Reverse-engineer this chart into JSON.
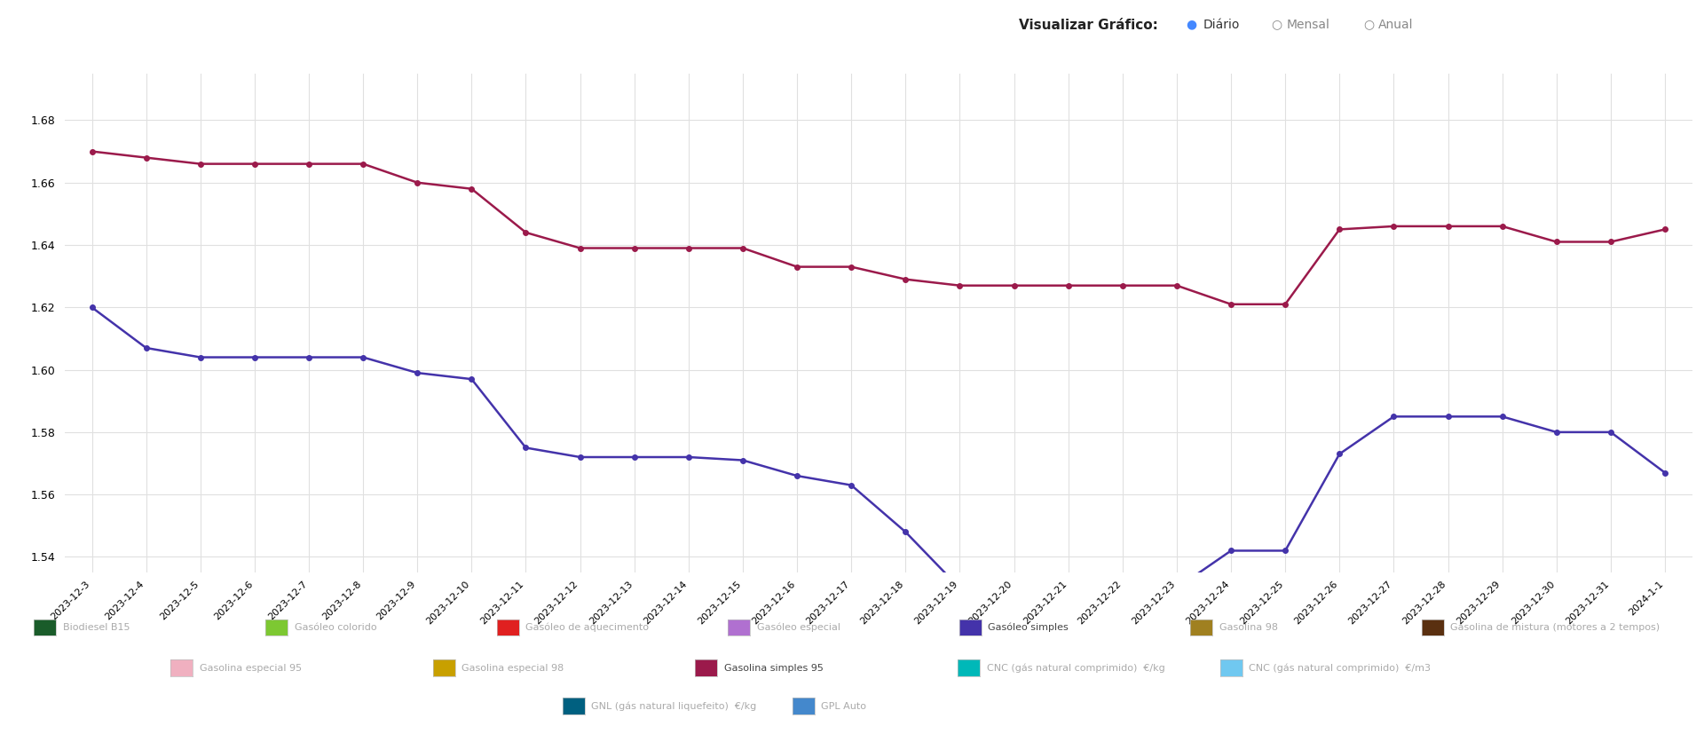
{
  "background_color": "#ffffff",
  "grid_color": "#e0e0e0",
  "ylim": [
    1.535,
    1.695
  ],
  "yticks": [
    1.54,
    1.56,
    1.58,
    1.6,
    1.62,
    1.64,
    1.66,
    1.68
  ],
  "dates": [
    "2023-12-3",
    "2023-12-4",
    "2023-12-5",
    "2023-12-6",
    "2023-12-7",
    "2023-12-8",
    "2023-12-9",
    "2023-12-10",
    "2023-12-11",
    "2023-12-12",
    "2023-12-13",
    "2023-12-14",
    "2023-12-15",
    "2023-12-16",
    "2023-12-17",
    "2023-12-18",
    "2023-12-19",
    "2023-12-20",
    "2023-12-21",
    "2023-12-22",
    "2023-12-23",
    "2023-12-24",
    "2023-12-25",
    "2023-12-26",
    "2023-12-27",
    "2023-12-28",
    "2023-12-29",
    "2023-12-30",
    "2023-12-31",
    "2024-1-1"
  ],
  "gasolina95": [
    1.67,
    1.668,
    1.666,
    1.666,
    1.666,
    1.666,
    1.66,
    1.658,
    1.644,
    1.639,
    1.639,
    1.639,
    1.639,
    1.633,
    1.633,
    1.629,
    1.627,
    1.627,
    1.627,
    1.627,
    1.627,
    1.621,
    1.621,
    1.645,
    1.646,
    1.646,
    1.646,
    1.641,
    1.641,
    1.645
  ],
  "gasoleo_simples": [
    1.62,
    1.607,
    1.604,
    1.604,
    1.604,
    1.604,
    1.599,
    1.597,
    1.575,
    1.572,
    1.572,
    1.572,
    1.571,
    1.566,
    1.563,
    1.548,
    1.53,
    1.53,
    1.53,
    1.53,
    1.53,
    1.542,
    1.542,
    1.573,
    1.585,
    1.585,
    1.585,
    1.58,
    1.58,
    1.567
  ],
  "gasolina95_color": "#9b1a4b",
  "gasoleo_color": "#4433aa",
  "marker_size": 4,
  "line_width": 1.8,
  "legend_rows": [
    [
      {
        "label": "Biodiesel B15",
        "color": "#1a5c2a",
        "active": false
      },
      {
        "label": "Gasóleo colorido",
        "color": "#7dc832",
        "active": false
      },
      {
        "label": "Gasóleo de aquecimento",
        "color": "#e02020",
        "active": false
      },
      {
        "label": "Gasóleo especial",
        "color": "#b070d0",
        "active": false
      },
      {
        "label": "Gasóleo simples",
        "color": "#4433aa",
        "active": true
      },
      {
        "label": "Gasolina 98",
        "color": "#a08020",
        "active": false
      },
      {
        "label": "Gasolina de mistura (motores a 2 tempos)",
        "color": "#5a3010",
        "active": false
      }
    ],
    [
      {
        "label": "Gasolina especial 95",
        "color": "#f0b0c0",
        "active": false
      },
      {
        "label": "Gasolina especial 98",
        "color": "#c8a000",
        "active": false
      },
      {
        "label": "Gasolina simples 95",
        "color": "#9b1a4b",
        "active": true
      },
      {
        "label": "CNC (gás natural comprimido)  €/kg",
        "color": "#00b8b8",
        "active": false
      },
      {
        "label": "CNC (gás natural comprimido)  €/m3",
        "color": "#70c8f0",
        "active": false
      }
    ],
    [
      {
        "label": "GNL (gás natural liquefeito)  €/kg",
        "color": "#006080",
        "active": false
      },
      {
        "label": "GPL Auto",
        "color": "#4488cc",
        "active": false
      }
    ]
  ],
  "header_label": "Visualizar Gráfico:",
  "header_diario": "Diário",
  "header_mensal": "Mensal",
  "header_anual": "Anual"
}
